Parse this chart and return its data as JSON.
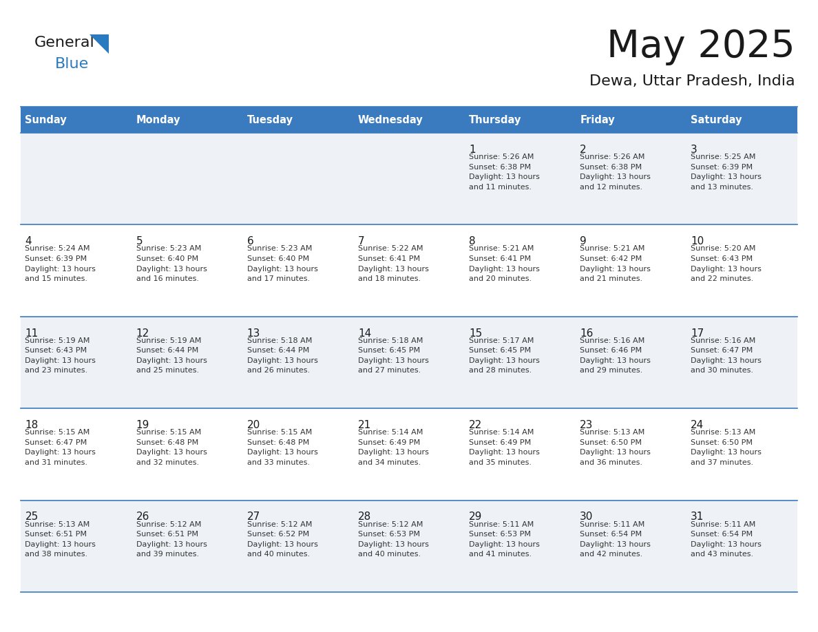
{
  "title": "May 2025",
  "subtitle": "Dewa, Uttar Pradesh, India",
  "header_bg": "#3a7abf",
  "header_text": "#ffffff",
  "cell_bg_even": "#eef2f7",
  "cell_bg_odd": "#ffffff",
  "day_headers": [
    "Sunday",
    "Monday",
    "Tuesday",
    "Wednesday",
    "Thursday",
    "Friday",
    "Saturday"
  ],
  "days": [
    {
      "day": 1,
      "col": 4,
      "row": 0,
      "sunrise": "5:26 AM",
      "sunset": "6:38 PM",
      "daylight_h": "13 hours",
      "daylight_m": "and 11 minutes."
    },
    {
      "day": 2,
      "col": 5,
      "row": 0,
      "sunrise": "5:26 AM",
      "sunset": "6:38 PM",
      "daylight_h": "13 hours",
      "daylight_m": "and 12 minutes."
    },
    {
      "day": 3,
      "col": 6,
      "row": 0,
      "sunrise": "5:25 AM",
      "sunset": "6:39 PM",
      "daylight_h": "13 hours",
      "daylight_m": "and 13 minutes."
    },
    {
      "day": 4,
      "col": 0,
      "row": 1,
      "sunrise": "5:24 AM",
      "sunset": "6:39 PM",
      "daylight_h": "13 hours",
      "daylight_m": "and 15 minutes."
    },
    {
      "day": 5,
      "col": 1,
      "row": 1,
      "sunrise": "5:23 AM",
      "sunset": "6:40 PM",
      "daylight_h": "13 hours",
      "daylight_m": "and 16 minutes."
    },
    {
      "day": 6,
      "col": 2,
      "row": 1,
      "sunrise": "5:23 AM",
      "sunset": "6:40 PM",
      "daylight_h": "13 hours",
      "daylight_m": "and 17 minutes."
    },
    {
      "day": 7,
      "col": 3,
      "row": 1,
      "sunrise": "5:22 AM",
      "sunset": "6:41 PM",
      "daylight_h": "13 hours",
      "daylight_m": "and 18 minutes."
    },
    {
      "day": 8,
      "col": 4,
      "row": 1,
      "sunrise": "5:21 AM",
      "sunset": "6:41 PM",
      "daylight_h": "13 hours",
      "daylight_m": "and 20 minutes."
    },
    {
      "day": 9,
      "col": 5,
      "row": 1,
      "sunrise": "5:21 AM",
      "sunset": "6:42 PM",
      "daylight_h": "13 hours",
      "daylight_m": "and 21 minutes."
    },
    {
      "day": 10,
      "col": 6,
      "row": 1,
      "sunrise": "5:20 AM",
      "sunset": "6:43 PM",
      "daylight_h": "13 hours",
      "daylight_m": "and 22 minutes."
    },
    {
      "day": 11,
      "col": 0,
      "row": 2,
      "sunrise": "5:19 AM",
      "sunset": "6:43 PM",
      "daylight_h": "13 hours",
      "daylight_m": "and 23 minutes."
    },
    {
      "day": 12,
      "col": 1,
      "row": 2,
      "sunrise": "5:19 AM",
      "sunset": "6:44 PM",
      "daylight_h": "13 hours",
      "daylight_m": "and 25 minutes."
    },
    {
      "day": 13,
      "col": 2,
      "row": 2,
      "sunrise": "5:18 AM",
      "sunset": "6:44 PM",
      "daylight_h": "13 hours",
      "daylight_m": "and 26 minutes."
    },
    {
      "day": 14,
      "col": 3,
      "row": 2,
      "sunrise": "5:18 AM",
      "sunset": "6:45 PM",
      "daylight_h": "13 hours",
      "daylight_m": "and 27 minutes."
    },
    {
      "day": 15,
      "col": 4,
      "row": 2,
      "sunrise": "5:17 AM",
      "sunset": "6:45 PM",
      "daylight_h": "13 hours",
      "daylight_m": "and 28 minutes."
    },
    {
      "day": 16,
      "col": 5,
      "row": 2,
      "sunrise": "5:16 AM",
      "sunset": "6:46 PM",
      "daylight_h": "13 hours",
      "daylight_m": "and 29 minutes."
    },
    {
      "day": 17,
      "col": 6,
      "row": 2,
      "sunrise": "5:16 AM",
      "sunset": "6:47 PM",
      "daylight_h": "13 hours",
      "daylight_m": "and 30 minutes."
    },
    {
      "day": 18,
      "col": 0,
      "row": 3,
      "sunrise": "5:15 AM",
      "sunset": "6:47 PM",
      "daylight_h": "13 hours",
      "daylight_m": "and 31 minutes."
    },
    {
      "day": 19,
      "col": 1,
      "row": 3,
      "sunrise": "5:15 AM",
      "sunset": "6:48 PM",
      "daylight_h": "13 hours",
      "daylight_m": "and 32 minutes."
    },
    {
      "day": 20,
      "col": 2,
      "row": 3,
      "sunrise": "5:15 AM",
      "sunset": "6:48 PM",
      "daylight_h": "13 hours",
      "daylight_m": "and 33 minutes."
    },
    {
      "day": 21,
      "col": 3,
      "row": 3,
      "sunrise": "5:14 AM",
      "sunset": "6:49 PM",
      "daylight_h": "13 hours",
      "daylight_m": "and 34 minutes."
    },
    {
      "day": 22,
      "col": 4,
      "row": 3,
      "sunrise": "5:14 AM",
      "sunset": "6:49 PM",
      "daylight_h": "13 hours",
      "daylight_m": "and 35 minutes."
    },
    {
      "day": 23,
      "col": 5,
      "row": 3,
      "sunrise": "5:13 AM",
      "sunset": "6:50 PM",
      "daylight_h": "13 hours",
      "daylight_m": "and 36 minutes."
    },
    {
      "day": 24,
      "col": 6,
      "row": 3,
      "sunrise": "5:13 AM",
      "sunset": "6:50 PM",
      "daylight_h": "13 hours",
      "daylight_m": "and 37 minutes."
    },
    {
      "day": 25,
      "col": 0,
      "row": 4,
      "sunrise": "5:13 AM",
      "sunset": "6:51 PM",
      "daylight_h": "13 hours",
      "daylight_m": "and 38 minutes."
    },
    {
      "day": 26,
      "col": 1,
      "row": 4,
      "sunrise": "5:12 AM",
      "sunset": "6:51 PM",
      "daylight_h": "13 hours",
      "daylight_m": "and 39 minutes."
    },
    {
      "day": 27,
      "col": 2,
      "row": 4,
      "sunrise": "5:12 AM",
      "sunset": "6:52 PM",
      "daylight_h": "13 hours",
      "daylight_m": "and 40 minutes."
    },
    {
      "day": 28,
      "col": 3,
      "row": 4,
      "sunrise": "5:12 AM",
      "sunset": "6:53 PM",
      "daylight_h": "13 hours",
      "daylight_m": "and 40 minutes."
    },
    {
      "day": 29,
      "col": 4,
      "row": 4,
      "sunrise": "5:11 AM",
      "sunset": "6:53 PM",
      "daylight_h": "13 hours",
      "daylight_m": "and 41 minutes."
    },
    {
      "day": 30,
      "col": 5,
      "row": 4,
      "sunrise": "5:11 AM",
      "sunset": "6:54 PM",
      "daylight_h": "13 hours",
      "daylight_m": "and 42 minutes."
    },
    {
      "day": 31,
      "col": 6,
      "row": 4,
      "sunrise": "5:11 AM",
      "sunset": "6:54 PM",
      "daylight_h": "13 hours",
      "daylight_m": "and 43 minutes."
    }
  ],
  "logo_color_general": "#1a1a1a",
  "logo_color_blue": "#2a7abf",
  "logo_triangle_color": "#2a7abf",
  "grid_line_color": "#3a7abf",
  "cell_text_color": "#333333",
  "day_number_color": "#1a1a1a",
  "title_color": "#1a1a1a",
  "subtitle_color": "#1a1a1a",
  "figw": 11.88,
  "figh": 9.18,
  "dpi": 100
}
